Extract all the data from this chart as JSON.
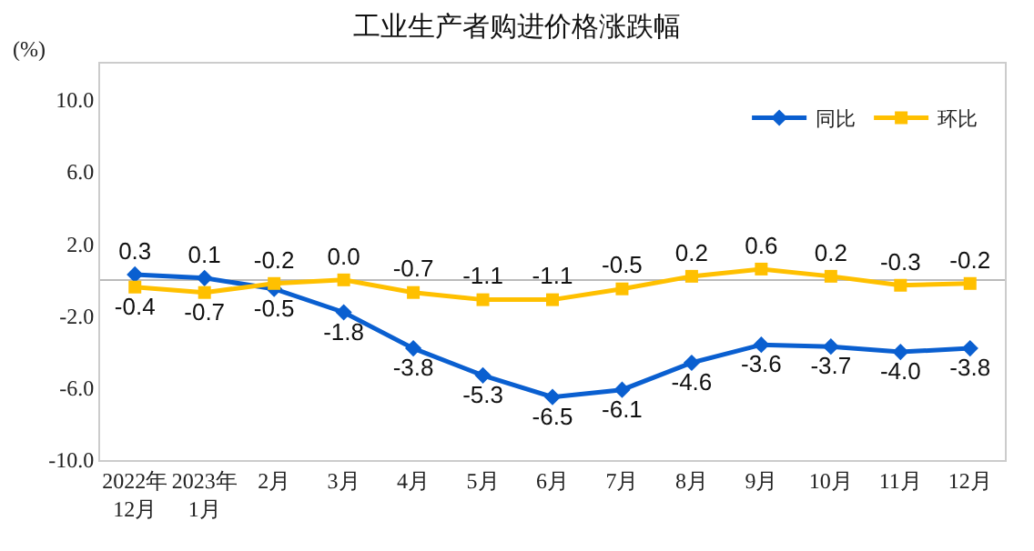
{
  "chart_data": {
    "type": "line",
    "title": "工业生产者购进价格涨跌幅",
    "ylabel": "(%)",
    "categories": [
      "2022年\n12月",
      "2023年\n1月",
      "2月",
      "3月",
      "4月",
      "5月",
      "6月",
      "7月",
      "8月",
      "9月",
      "10月",
      "11月",
      "12月"
    ],
    "series": [
      {
        "name": "同比",
        "color": "#0a5fd0",
        "marker": "diamond",
        "values": [
          0.3,
          0.1,
          -0.5,
          -1.8,
          -3.8,
          -5.3,
          -6.5,
          -6.1,
          -4.6,
          -3.6,
          -3.7,
          -4.0,
          -3.8
        ],
        "value_labels": [
          "0.3",
          "0.1",
          "-0.5",
          "-1.8",
          "-3.8",
          "-5.3",
          "-6.5",
          "-6.1",
          "-4.6",
          "-3.6",
          "-3.7",
          "-4.0",
          "-3.8"
        ]
      },
      {
        "name": "环比",
        "color": "#ffc000",
        "marker": "square",
        "values": [
          -0.4,
          -0.7,
          -0.2,
          0.0,
          -0.7,
          -1.1,
          -1.1,
          -0.5,
          0.2,
          0.6,
          0.2,
          -0.3,
          -0.2
        ],
        "value_labels": [
          "-0.4",
          "-0.7",
          "-0.2",
          "0.0",
          "-0.7",
          "-1.1",
          "-1.1",
          "-0.5",
          "0.2",
          "0.6",
          "0.2",
          "-0.3",
          "-0.2"
        ]
      }
    ],
    "ylim": [
      -10,
      12
    ],
    "yticks": [
      {
        "value": -10,
        "label": "-10.0"
      },
      {
        "value": -6,
        "label": "-6.0"
      },
      {
        "value": -2,
        "label": "-2.0"
      },
      {
        "value": 2,
        "label": "2.0"
      },
      {
        "value": 6,
        "label": "6.0"
      },
      {
        "value": 10,
        "label": "10.0"
      }
    ],
    "legend": "top right"
  }
}
